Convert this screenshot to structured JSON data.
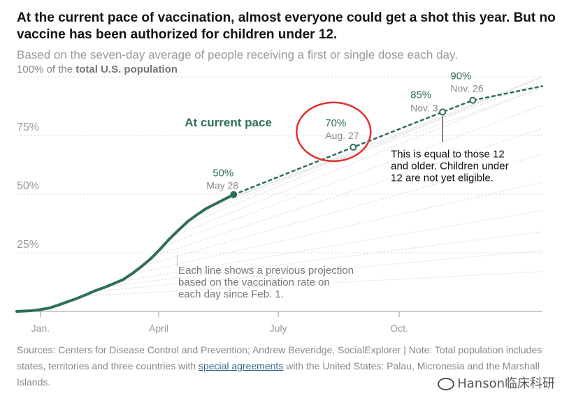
{
  "header": {
    "title": "At the current pace of vaccination, almost everyone could get a shot this year. But no vaccine has been authorized for children under 12.",
    "subtitle": "Based on the seven-day average of people receiving a first or single dose each day."
  },
  "chart_data": {
    "type": "line",
    "ylabel_prefix": "100% of the ",
    "ylabel_bold": "total U.S. population",
    "ylim": [
      0,
      100
    ],
    "y_ticks": [
      {
        "value": 75,
        "label": "75%"
      },
      {
        "value": 50,
        "label": "50%"
      },
      {
        "value": 25,
        "label": "25%"
      }
    ],
    "x_ticks": [
      {
        "date": "2021-01-01",
        "label": "Jan."
      },
      {
        "date": "2021-04-01",
        "label": "April"
      },
      {
        "date": "2021-07-01",
        "label": "July"
      },
      {
        "date": "2021-10-01",
        "label": "Oct."
      }
    ],
    "xlim": [
      "2020-12-14",
      "2022-01-18"
    ],
    "grid": true,
    "series": [
      {
        "name": "actual",
        "style": "solid",
        "color": "#2e6e5a",
        "points": [
          {
            "x": "2020-12-14",
            "y": 0
          },
          {
            "x": "2020-12-25",
            "y": 0.3
          },
          {
            "x": "2021-01-01",
            "y": 0.8
          },
          {
            "x": "2021-01-08",
            "y": 1.5
          },
          {
            "x": "2021-01-15",
            "y": 2.8
          },
          {
            "x": "2021-01-22",
            "y": 4.2
          },
          {
            "x": "2021-01-29",
            "y": 5.6
          },
          {
            "x": "2021-02-05",
            "y": 7.2
          },
          {
            "x": "2021-02-12",
            "y": 8.9
          },
          {
            "x": "2021-02-19",
            "y": 10.3
          },
          {
            "x": "2021-02-26",
            "y": 11.9
          },
          {
            "x": "2021-03-05",
            "y": 13.6
          },
          {
            "x": "2021-03-12",
            "y": 16.2
          },
          {
            "x": "2021-03-19",
            "y": 19.2
          },
          {
            "x": "2021-03-26",
            "y": 22.5
          },
          {
            "x": "2021-04-02",
            "y": 26.5
          },
          {
            "x": "2021-04-09",
            "y": 30.8
          },
          {
            "x": "2021-04-16",
            "y": 34.6
          },
          {
            "x": "2021-04-23",
            "y": 38.3
          },
          {
            "x": "2021-04-30",
            "y": 41.2
          },
          {
            "x": "2021-05-07",
            "y": 43.8
          },
          {
            "x": "2021-05-14",
            "y": 45.8
          },
          {
            "x": "2021-05-21",
            "y": 47.8
          },
          {
            "x": "2021-05-28",
            "y": 49.8
          }
        ]
      },
      {
        "name": "At current pace",
        "style": "dotted",
        "color": "#2e6e5a",
        "points": [
          {
            "x": "2021-05-28",
            "y": 49.8
          },
          {
            "x": "2021-08-27",
            "y": 70
          },
          {
            "x": "2021-11-03",
            "y": 85
          },
          {
            "x": "2021-11-26",
            "y": 90
          },
          {
            "x": "2022-01-18",
            "y": 96
          }
        ]
      }
    ],
    "previous_projections_endpoints": [
      {
        "start": "2021-02-01",
        "start_y": 6.5,
        "end_y": 17
      },
      {
        "start": "2021-02-10",
        "start_y": 8.5,
        "end_y": 26
      },
      {
        "start": "2021-02-20",
        "start_y": 10.5,
        "end_y": 34
      },
      {
        "start": "2021-03-01",
        "start_y": 12.5,
        "end_y": 43
      },
      {
        "start": "2021-03-10",
        "start_y": 15.5,
        "end_y": 55
      },
      {
        "start": "2021-03-20",
        "start_y": 19.5,
        "end_y": 67
      },
      {
        "start": "2021-03-28",
        "start_y": 23.5,
        "end_y": 78
      },
      {
        "start": "2021-04-05",
        "start_y": 28,
        "end_y": 88
      },
      {
        "start": "2021-04-12",
        "start_y": 32,
        "end_y": 96
      },
      {
        "start": "2021-04-20",
        "start_y": 36.5,
        "end_y": 100
      },
      {
        "start": "2021-04-28",
        "start_y": 40.5,
        "end_y": 100
      },
      {
        "start": "2021-05-06",
        "start_y": 43.5,
        "end_y": 100
      },
      {
        "start": "2021-05-14",
        "start_y": 45.8,
        "end_y": 98
      },
      {
        "start": "2021-05-21",
        "start_y": 47.8,
        "end_y": 95
      }
    ],
    "series_label": "At current pace",
    "milestones": [
      {
        "date": "2021-05-28",
        "y": 49.8,
        "pct": "50%",
        "date_label": "May 28",
        "marker": "filled"
      },
      {
        "date": "2021-08-27",
        "y": 70,
        "pct": "70%",
        "date_label": "Aug. 27",
        "marker": "open",
        "highlighted": true
      },
      {
        "date": "2021-11-03",
        "y": 85,
        "pct": "85%",
        "date_label": "Nov. 3",
        "marker": "open"
      },
      {
        "date": "2021-11-26",
        "y": 90,
        "pct": "90%",
        "date_label": "Nov. 26",
        "marker": "open"
      }
    ],
    "annotations": {
      "projection_note": [
        "Each line shows a previous projection",
        "based on the vaccination rate on",
        "each day since Feb. 1."
      ],
      "eligibility_note": [
        "This is equal to those 12",
        "and older. Children under",
        "12 are not yet eligible."
      ]
    }
  },
  "footer": {
    "sources_before_link": "Sources: Centers for Disease Control and Prevention; Andrew Beveridge, SocialExplorer | Note: Total population includes states, territories and three countries with ",
    "link_text": "special agreements",
    "sources_after_link": " with the United States: Palau, Micronesia and the Marshall Islands.",
    "watermark": "Hanson临床科研"
  },
  "colors": {
    "accent": "#2e6e5a",
    "highlight_circle": "#e03131",
    "gridline": "#d9d9d9",
    "projection_lines": "#e3e3e3"
  }
}
